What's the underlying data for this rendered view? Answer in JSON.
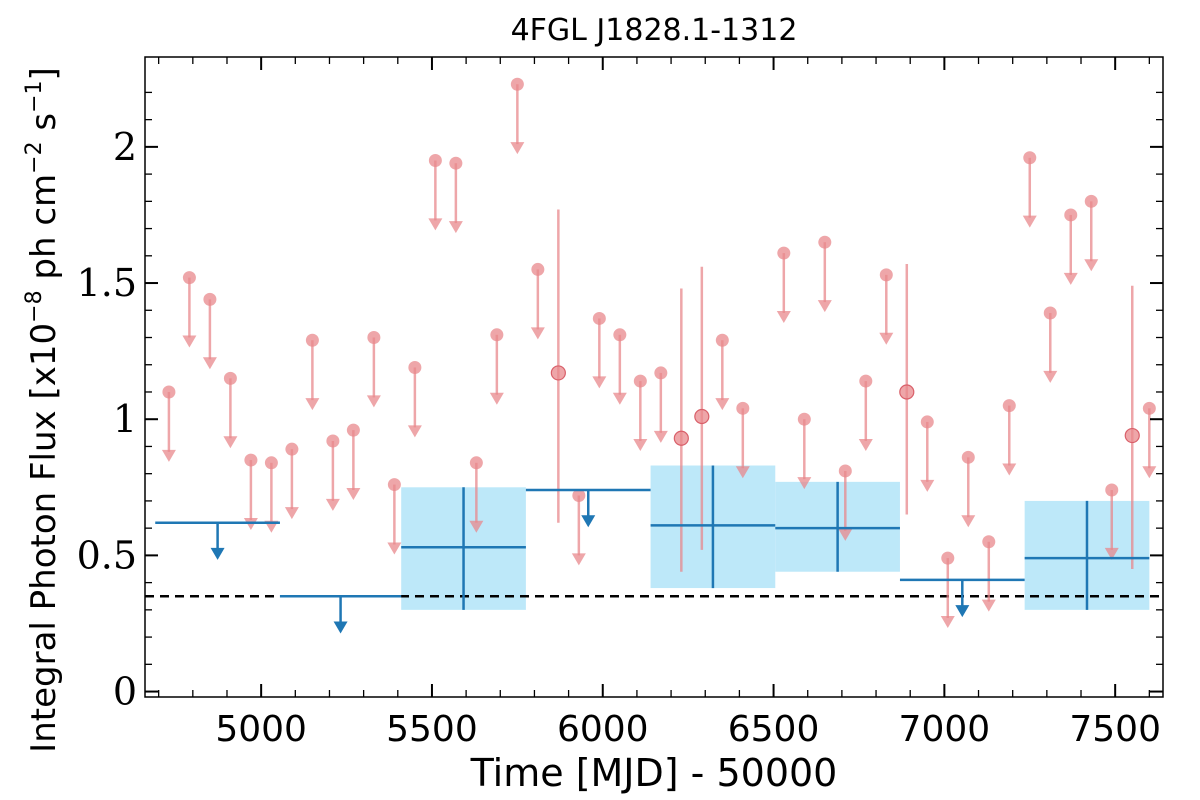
{
  "chart_data": {
    "type": "scatter",
    "title": "4FGL J1828.1-1312",
    "xlabel": "Time [MJD] - 50000",
    "ylabel_main": "Integral Photon Flux [x10",
    "ylabel_exp1": "−8",
    "ylabel_mid": " ph cm",
    "ylabel_exp2": "−2",
    "ylabel_s": " s",
    "ylabel_exp3": "−1",
    "ylabel_end": "]",
    "xlim": [
      4660,
      7640
    ],
    "ylim": [
      -0.02,
      2.33
    ],
    "x_ticks": [
      5000,
      5500,
      6000,
      6500,
      7000,
      7500
    ],
    "x_tick_labels": [
      "5000",
      "5500",
      "6000",
      "6500",
      "7000",
      "7500"
    ],
    "y_ticks": [
      0,
      0.5,
      1,
      1.5,
      2
    ],
    "y_tick_labels": [
      "0",
      "0.5",
      "1",
      "1.5",
      "2"
    ],
    "reference_line": {
      "y": 0.35,
      "style": "dashed",
      "color": "#000000"
    },
    "colors": {
      "monthly": "#e8888c",
      "yearly": "#1f77b4",
      "yearly_band": "#bde8f9"
    },
    "monthly_upper_limits": [
      {
        "x": 4730,
        "y": 1.1
      },
      {
        "x": 4790,
        "y": 1.52
      },
      {
        "x": 4850,
        "y": 1.44
      },
      {
        "x": 4910,
        "y": 1.15
      },
      {
        "x": 4970,
        "y": 0.85
      },
      {
        "x": 5030,
        "y": 0.84
      },
      {
        "x": 5090,
        "y": 0.89
      },
      {
        "x": 5150,
        "y": 1.29
      },
      {
        "x": 5210,
        "y": 0.92
      },
      {
        "x": 5270,
        "y": 0.96
      },
      {
        "x": 5330,
        "y": 1.3
      },
      {
        "x": 5390,
        "y": 0.76
      },
      {
        "x": 5450,
        "y": 1.19
      },
      {
        "x": 5510,
        "y": 1.95
      },
      {
        "x": 5570,
        "y": 1.94
      },
      {
        "x": 5630,
        "y": 0.84
      },
      {
        "x": 5690,
        "y": 1.31
      },
      {
        "x": 5750,
        "y": 2.23
      },
      {
        "x": 5810,
        "y": 1.55
      },
      {
        "x": 5930,
        "y": 0.72
      },
      {
        "x": 5990,
        "y": 1.37
      },
      {
        "x": 6050,
        "y": 1.31
      },
      {
        "x": 6110,
        "y": 1.14
      },
      {
        "x": 6170,
        "y": 1.17
      },
      {
        "x": 6350,
        "y": 1.29
      },
      {
        "x": 6410,
        "y": 1.04
      },
      {
        "x": 6530,
        "y": 1.61
      },
      {
        "x": 6590,
        "y": 1.0
      },
      {
        "x": 6650,
        "y": 1.65
      },
      {
        "x": 6710,
        "y": 0.81
      },
      {
        "x": 6770,
        "y": 1.14
      },
      {
        "x": 6830,
        "y": 1.53
      },
      {
        "x": 6950,
        "y": 0.99
      },
      {
        "x": 7010,
        "y": 0.49
      },
      {
        "x": 7070,
        "y": 0.86
      },
      {
        "x": 7130,
        "y": 0.55
      },
      {
        "x": 7190,
        "y": 1.05
      },
      {
        "x": 7250,
        "y": 1.96
      },
      {
        "x": 7310,
        "y": 1.39
      },
      {
        "x": 7370,
        "y": 1.75
      },
      {
        "x": 7430,
        "y": 1.8
      },
      {
        "x": 7490,
        "y": 0.74
      },
      {
        "x": 7600,
        "y": 1.04
      }
    ],
    "monthly_detections": [
      {
        "x": 5870,
        "y": 1.17,
        "ylo": 0.62,
        "yhi": 1.77
      },
      {
        "x": 6230,
        "y": 0.93,
        "ylo": 0.44,
        "yhi": 1.48
      },
      {
        "x": 6290,
        "y": 1.01,
        "ylo": 0.52,
        "yhi": 1.56
      },
      {
        "x": 6890,
        "y": 1.1,
        "ylo": 0.65,
        "yhi": 1.57
      },
      {
        "x": 7550,
        "y": 0.94,
        "ylo": 0.45,
        "yhi": 1.49
      }
    ],
    "yearly_upper_limits": [
      {
        "x0": 4690,
        "x1": 5055,
        "y": 0.62
      },
      {
        "x0": 5055,
        "x1": 5410,
        "y": 0.35
      },
      {
        "x0": 5775,
        "x1": 6140,
        "y": 0.74
      },
      {
        "x0": 6870,
        "x1": 7235,
        "y": 0.41
      }
    ],
    "yearly_detections": [
      {
        "x0": 5410,
        "x1": 5775,
        "y": 0.53,
        "ylo": 0.3,
        "yhi": 0.75
      },
      {
        "x0": 6140,
        "x1": 6505,
        "y": 0.61,
        "ylo": 0.38,
        "yhi": 0.83
      },
      {
        "x0": 6505,
        "x1": 6870,
        "y": 0.6,
        "ylo": 0.44,
        "yhi": 0.77
      },
      {
        "x0": 7235,
        "x1": 7600,
        "y": 0.49,
        "ylo": 0.3,
        "yhi": 0.7
      }
    ]
  }
}
